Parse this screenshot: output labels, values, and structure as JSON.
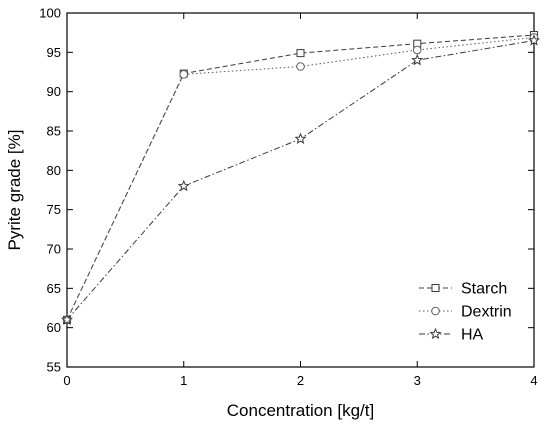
{
  "chart_data": {
    "type": "line",
    "title": "",
    "xlabel": "Concentration [kg/t]",
    "ylabel": "Pyrite grade [%]",
    "xlim": [
      0,
      4
    ],
    "ylim": [
      55,
      100
    ],
    "xticks": [
      0,
      1,
      2,
      3,
      4
    ],
    "yticks": [
      55,
      60,
      65,
      70,
      75,
      80,
      85,
      90,
      95,
      100
    ],
    "grid": false,
    "legend_position": "bottom-right",
    "series": [
      {
        "name": "Starch",
        "marker": "square",
        "dash": "dashed",
        "color": "#3a3a3a",
        "x": [
          0,
          1,
          2,
          3,
          4
        ],
        "y": [
          61.0,
          92.3,
          94.9,
          96.1,
          97.2
        ]
      },
      {
        "name": "Dextrin",
        "marker": "circle",
        "dash": "dotted",
        "color": "#5a5a5a",
        "x": [
          0,
          1,
          2,
          3,
          4
        ],
        "y": [
          61.0,
          92.2,
          93.2,
          95.3,
          96.9
        ]
      },
      {
        "name": "HA",
        "marker": "star",
        "dash": "dash-dot",
        "color": "#3a3a3a",
        "x": [
          0,
          1,
          2,
          3,
          4
        ],
        "y": [
          61.0,
          78.0,
          84.0,
          94.0,
          96.5
        ]
      }
    ]
  }
}
